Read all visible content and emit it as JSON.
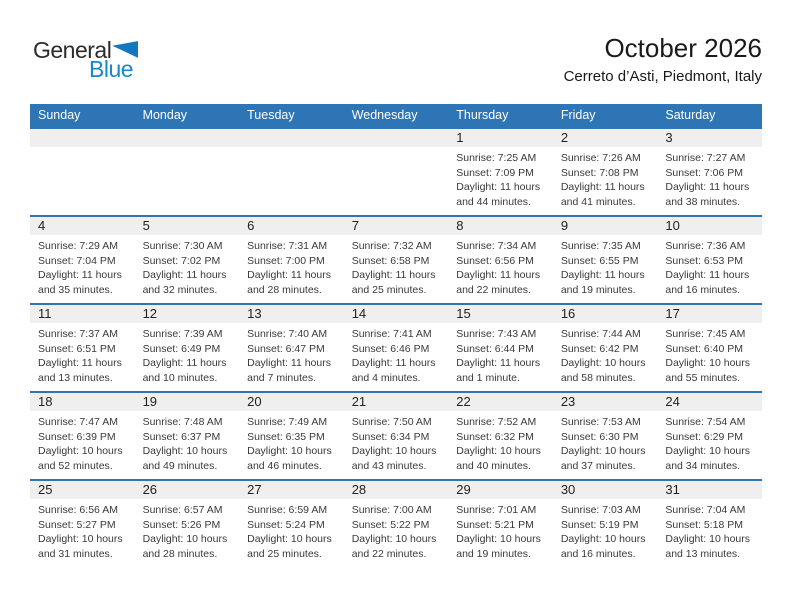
{
  "logo": {
    "part1": "General",
    "part2": "Blue",
    "triangle_icon": "blue-flag-triangle"
  },
  "title": "October 2026",
  "subtitle": "Cerreto d’Asti, Piedmont, Italy",
  "colors": {
    "header_bg": "#2E75B6",
    "header_text": "#FFFFFF",
    "week_divider": "#2E75B6",
    "date_strip_bg": "#EFEFEF",
    "logo_blue": "#1789CA",
    "logo_triangle": "#1377BE",
    "title_text": "#1A1A1A",
    "cell_text": "#3A3A3A"
  },
  "weekdays": [
    "Sunday",
    "Monday",
    "Tuesday",
    "Wednesday",
    "Thursday",
    "Friday",
    "Saturday"
  ],
  "weeks": [
    [
      {
        "day": "",
        "lines": []
      },
      {
        "day": "",
        "lines": []
      },
      {
        "day": "",
        "lines": []
      },
      {
        "day": "",
        "lines": []
      },
      {
        "day": "1",
        "lines": [
          "Sunrise: 7:25 AM",
          "Sunset: 7:09 PM",
          "Daylight: 11 hours",
          "and 44 minutes."
        ]
      },
      {
        "day": "2",
        "lines": [
          "Sunrise: 7:26 AM",
          "Sunset: 7:08 PM",
          "Daylight: 11 hours",
          "and 41 minutes."
        ]
      },
      {
        "day": "3",
        "lines": [
          "Sunrise: 7:27 AM",
          "Sunset: 7:06 PM",
          "Daylight: 11 hours",
          "and 38 minutes."
        ]
      }
    ],
    [
      {
        "day": "4",
        "lines": [
          "Sunrise: 7:29 AM",
          "Sunset: 7:04 PM",
          "Daylight: 11 hours",
          "and 35 minutes."
        ]
      },
      {
        "day": "5",
        "lines": [
          "Sunrise: 7:30 AM",
          "Sunset: 7:02 PM",
          "Daylight: 11 hours",
          "and 32 minutes."
        ]
      },
      {
        "day": "6",
        "lines": [
          "Sunrise: 7:31 AM",
          "Sunset: 7:00 PM",
          "Daylight: 11 hours",
          "and 28 minutes."
        ]
      },
      {
        "day": "7",
        "lines": [
          "Sunrise: 7:32 AM",
          "Sunset: 6:58 PM",
          "Daylight: 11 hours",
          "and 25 minutes."
        ]
      },
      {
        "day": "8",
        "lines": [
          "Sunrise: 7:34 AM",
          "Sunset: 6:56 PM",
          "Daylight: 11 hours",
          "and 22 minutes."
        ]
      },
      {
        "day": "9",
        "lines": [
          "Sunrise: 7:35 AM",
          "Sunset: 6:55 PM",
          "Daylight: 11 hours",
          "and 19 minutes."
        ]
      },
      {
        "day": "10",
        "lines": [
          "Sunrise: 7:36 AM",
          "Sunset: 6:53 PM",
          "Daylight: 11 hours",
          "and 16 minutes."
        ]
      }
    ],
    [
      {
        "day": "11",
        "lines": [
          "Sunrise: 7:37 AM",
          "Sunset: 6:51 PM",
          "Daylight: 11 hours",
          "and 13 minutes."
        ]
      },
      {
        "day": "12",
        "lines": [
          "Sunrise: 7:39 AM",
          "Sunset: 6:49 PM",
          "Daylight: 11 hours",
          "and 10 minutes."
        ]
      },
      {
        "day": "13",
        "lines": [
          "Sunrise: 7:40 AM",
          "Sunset: 6:47 PM",
          "Daylight: 11 hours",
          "and 7 minutes."
        ]
      },
      {
        "day": "14",
        "lines": [
          "Sunrise: 7:41 AM",
          "Sunset: 6:46 PM",
          "Daylight: 11 hours",
          "and 4 minutes."
        ]
      },
      {
        "day": "15",
        "lines": [
          "Sunrise: 7:43 AM",
          "Sunset: 6:44 PM",
          "Daylight: 11 hours",
          "and 1 minute."
        ]
      },
      {
        "day": "16",
        "lines": [
          "Sunrise: 7:44 AM",
          "Sunset: 6:42 PM",
          "Daylight: 10 hours",
          "and 58 minutes."
        ]
      },
      {
        "day": "17",
        "lines": [
          "Sunrise: 7:45 AM",
          "Sunset: 6:40 PM",
          "Daylight: 10 hours",
          "and 55 minutes."
        ]
      }
    ],
    [
      {
        "day": "18",
        "lines": [
          "Sunrise: 7:47 AM",
          "Sunset: 6:39 PM",
          "Daylight: 10 hours",
          "and 52 minutes."
        ]
      },
      {
        "day": "19",
        "lines": [
          "Sunrise: 7:48 AM",
          "Sunset: 6:37 PM",
          "Daylight: 10 hours",
          "and 49 minutes."
        ]
      },
      {
        "day": "20",
        "lines": [
          "Sunrise: 7:49 AM",
          "Sunset: 6:35 PM",
          "Daylight: 10 hours",
          "and 46 minutes."
        ]
      },
      {
        "day": "21",
        "lines": [
          "Sunrise: 7:50 AM",
          "Sunset: 6:34 PM",
          "Daylight: 10 hours",
          "and 43 minutes."
        ]
      },
      {
        "day": "22",
        "lines": [
          "Sunrise: 7:52 AM",
          "Sunset: 6:32 PM",
          "Daylight: 10 hours",
          "and 40 minutes."
        ]
      },
      {
        "day": "23",
        "lines": [
          "Sunrise: 7:53 AM",
          "Sunset: 6:30 PM",
          "Daylight: 10 hours",
          "and 37 minutes."
        ]
      },
      {
        "day": "24",
        "lines": [
          "Sunrise: 7:54 AM",
          "Sunset: 6:29 PM",
          "Daylight: 10 hours",
          "and 34 minutes."
        ]
      }
    ],
    [
      {
        "day": "25",
        "lines": [
          "Sunrise: 6:56 AM",
          "Sunset: 5:27 PM",
          "Daylight: 10 hours",
          "and 31 minutes."
        ]
      },
      {
        "day": "26",
        "lines": [
          "Sunrise: 6:57 AM",
          "Sunset: 5:26 PM",
          "Daylight: 10 hours",
          "and 28 minutes."
        ]
      },
      {
        "day": "27",
        "lines": [
          "Sunrise: 6:59 AM",
          "Sunset: 5:24 PM",
          "Daylight: 10 hours",
          "and 25 minutes."
        ]
      },
      {
        "day": "28",
        "lines": [
          "Sunrise: 7:00 AM",
          "Sunset: 5:22 PM",
          "Daylight: 10 hours",
          "and 22 minutes."
        ]
      },
      {
        "day": "29",
        "lines": [
          "Sunrise: 7:01 AM",
          "Sunset: 5:21 PM",
          "Daylight: 10 hours",
          "and 19 minutes."
        ]
      },
      {
        "day": "30",
        "lines": [
          "Sunrise: 7:03 AM",
          "Sunset: 5:19 PM",
          "Daylight: 10 hours",
          "and 16 minutes."
        ]
      },
      {
        "day": "31",
        "lines": [
          "Sunrise: 7:04 AM",
          "Sunset: 5:18 PM",
          "Daylight: 10 hours",
          "and 13 minutes."
        ]
      }
    ]
  ]
}
